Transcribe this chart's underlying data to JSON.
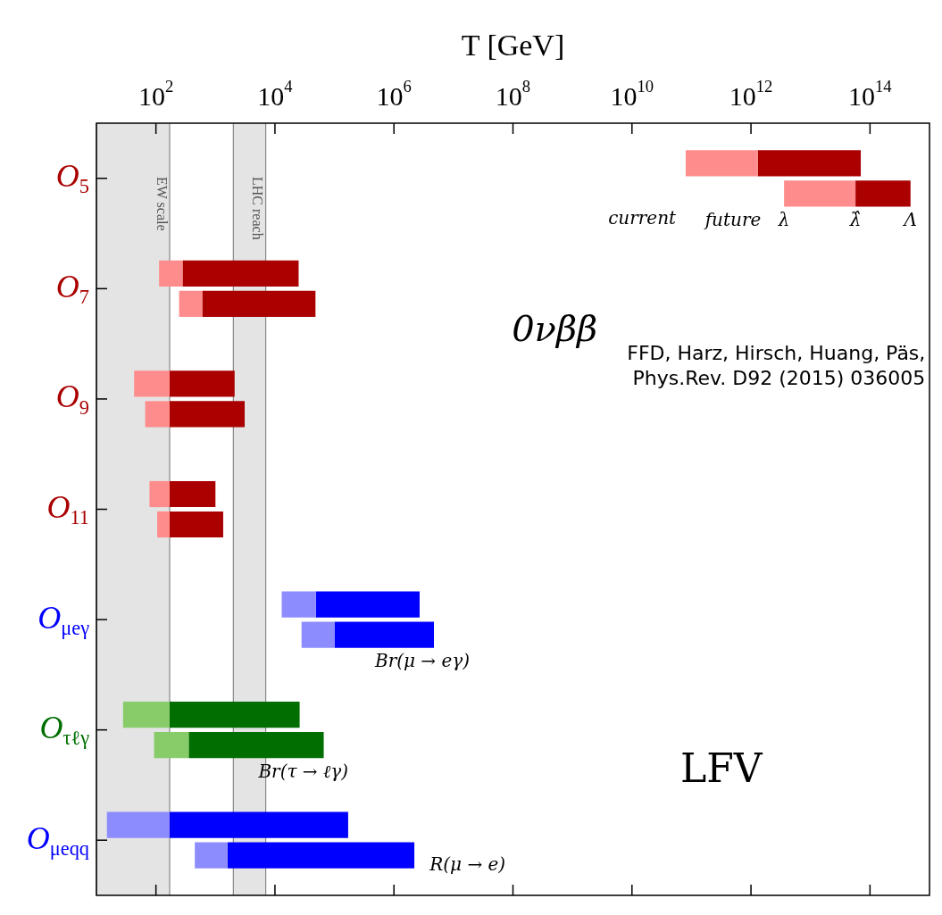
{
  "chart_data": {
    "type": "bar",
    "log": "x",
    "xlabel": "T [GeV]",
    "orientation": "horizontal",
    "categories": [
      "O$_{5}$",
      "O$_{7}$",
      "O$_{9}$",
      "O$_{11}$",
      "O$_{μeγ}$",
      "O$_{τℓγ}$",
      "O$_{μeqq}$"
    ],
    "series": [
      {
        "base": [
          80000000000.0,
          113,
          43,
          78,
          13000,
          28,
          15
        ],
        "values": [
          1220000000000.0,
          167,
          127,
          92,
          36000,
          142,
          155
        ],
        "colors": [
          "#ff8c8c",
          "#ff8c8c",
          "#ff8c8c",
          "#ff8c8c",
          "#8c8cff",
          "#88cc6a",
          "#8c8cff"
        ]
      },
      {
        "base": [
          1300000000000.0,
          280,
          170,
          170,
          49000,
          170,
          170
        ],
        "values": [
          68700000000000.0,
          24720,
          1930,
          830,
          2651000,
          25830,
          169830
        ],
        "colors": [
          "#aa0000",
          "#aa0000",
          "#aa0000",
          "#aa0000",
          "#0000ff",
          "#006e00",
          "#0000ff"
        ]
      },
      {
        "base": [
          3600000000000.0,
          245,
          66,
          105,
          28000,
          93,
          450
        ],
        "values": [
          53400000000000.0,
          355,
          104,
          65,
          72000,
          262,
          1150
        ],
        "colors": [
          "#ff8c8c",
          "#ff8c8c",
          "#ff8c8c",
          "#ff8c8c",
          "#8c8cff",
          "#88cc6a",
          "#8c8cff"
        ]
      },
      {
        "base": [
          57000000000000.0,
          600,
          170,
          170,
          100000,
          355,
          1600
        ],
        "values": [
          423000000000000.0,
          47400,
          2930,
          1180,
          4600000,
          65645,
          2198400
        ],
        "colors": [
          "#aa0000",
          "#aa0000",
          "#aa0000",
          "#aa0000",
          "#0000ff",
          "#006e00",
          "#0000ff"
        ]
      }
    ],
    "xlim": [
      10,
      1000000000000000.0
    ],
    "xticks": [
      {
        "value": 100,
        "label": "10$^{2}$"
      },
      {
        "value": 10000,
        "label": "10$^{4}$"
      },
      {
        "value": 1000000,
        "label": "10$^{6}$"
      },
      {
        "value": 100000000,
        "label": "10$^{8}$"
      },
      {
        "value": 10000000000,
        "label": "10$^{10}$"
      },
      {
        "value": 1000000000000,
        "label": "10$^{12}$"
      },
      {
        "value": 100000000000000,
        "label": "10$^{14}$"
      }
    ],
    "bands": [
      {
        "axis": "x",
        "from": 10,
        "to": 170,
        "label": "EW scale",
        "color": "#e4e4e4"
      },
      {
        "axis": "x",
        "from": 2000,
        "to": 7000,
        "label": "LHC reach",
        "color": "#e4e4e4"
      }
    ],
    "annotations": [
      "current",
      {
        "text": "future",
        "x": 500000000000.0,
        "y": "O$_{5}$"
      },
      {
        "text": "λ",
        "x": 3600000000000.0,
        "y": "O$_{5}$"
      },
      {
        "text": "λ̂",
        "x": 57000000000000.0,
        "y": "O$_{5}$"
      },
      {
        "text": "Λ",
        "x": 480000000000000.0,
        "y": "O$_{5}$"
      },
      "0νββ",
      {
        "text": "Br(μ → eγ)",
        "x": 3000000.0,
        "y": "O$_{μeγ}$"
      },
      {
        "text": "Br(τ → ℓγ)",
        "x": 30000.0,
        "y": "O$_{τℓγ}$"
      },
      "LFV",
      "R(μ → e)",
      "FFD, Harz, Hirsch, Huang, Päs, Phys.Rev. D92 (2015) 036005"
    ]
  }
}
